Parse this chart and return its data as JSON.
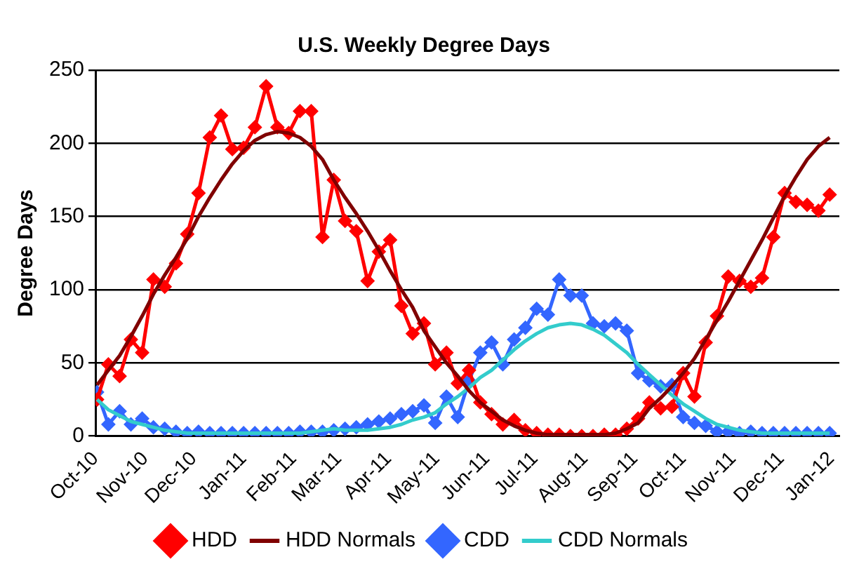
{
  "chart_data": {
    "type": "line",
    "title": "U.S. Weekly Degree Days",
    "ylabel": "Degree Days",
    "x": [
      "2010-10-02",
      "2010-10-09",
      "2010-10-16",
      "2010-10-23",
      "2010-10-30",
      "2010-11-06",
      "2010-11-13",
      "2010-11-20",
      "2010-11-27",
      "2010-12-04",
      "2010-12-11",
      "2010-12-18",
      "2010-12-25",
      "2011-01-01",
      "2011-01-08",
      "2011-01-15",
      "2011-01-22",
      "2011-01-29",
      "2011-02-05",
      "2011-02-12",
      "2011-02-19",
      "2011-02-26",
      "2011-03-05",
      "2011-03-12",
      "2011-03-19",
      "2011-03-26",
      "2011-04-02",
      "2011-04-09",
      "2011-04-16",
      "2011-04-23",
      "2011-04-30",
      "2011-05-07",
      "2011-05-14",
      "2011-05-21",
      "2011-05-28",
      "2011-06-04",
      "2011-06-11",
      "2011-06-18",
      "2011-06-25",
      "2011-07-02",
      "2011-07-09",
      "2011-07-16",
      "2011-07-23",
      "2011-07-30",
      "2011-08-06",
      "2011-08-13",
      "2011-08-20",
      "2011-08-27",
      "2011-09-03",
      "2011-09-10",
      "2011-09-17",
      "2011-09-24",
      "2011-10-01",
      "2011-10-08",
      "2011-10-15",
      "2011-10-22",
      "2011-10-29",
      "2011-11-05",
      "2011-11-12",
      "2011-11-19",
      "2011-11-26",
      "2011-12-03",
      "2011-12-10",
      "2011-12-17",
      "2011-12-24",
      "2011-12-31"
    ],
    "series": [
      {
        "name": "HDD",
        "color": "#ff0000",
        "marker": "diamond",
        "values": [
          25,
          49,
          41,
          66,
          57,
          107,
          102,
          118,
          138,
          166,
          204,
          219,
          196,
          197,
          211,
          239,
          211,
          207,
          222,
          222,
          136,
          175,
          147,
          140,
          106,
          126,
          134,
          89,
          70,
          77,
          49,
          57,
          36,
          45,
          23,
          15,
          8,
          11,
          4,
          2,
          1,
          1,
          0,
          0,
          0,
          1,
          1,
          5,
          12,
          23,
          19,
          20,
          43,
          27,
          64,
          82,
          109,
          106,
          102,
          108,
          136,
          166,
          160,
          158,
          154,
          165
        ]
      },
      {
        "name": "HDD Normals",
        "color": "#800000",
        "marker": "none",
        "values": [
          35,
          45,
          55,
          68,
          82,
          97,
          110,
          122,
          135,
          150,
          163,
          175,
          186,
          195,
          202,
          206,
          208,
          207,
          204,
          198,
          189,
          175,
          163,
          152,
          140,
          127,
          113,
          100,
          88,
          72,
          61,
          50,
          41,
          31,
          23,
          17,
          11,
          7,
          4,
          2,
          1,
          1,
          1,
          1,
          1,
          1,
          2,
          5,
          9,
          19,
          26,
          34,
          43,
          53,
          66,
          79,
          92,
          106,
          120,
          134,
          149,
          164,
          177,
          189,
          198,
          204
        ]
      },
      {
        "name": "CDD",
        "color": "#3366ff",
        "marker": "diamond",
        "values": [
          30,
          8,
          17,
          8,
          12,
          6,
          5,
          3,
          2,
          3,
          2,
          2,
          2,
          2,
          2,
          2,
          2,
          2,
          3,
          3,
          3,
          4,
          5,
          6,
          8,
          10,
          12,
          15,
          17,
          21,
          9,
          27,
          13,
          38,
          57,
          64,
          49,
          66,
          74,
          87,
          83,
          107,
          96,
          96,
          77,
          75,
          77,
          72,
          43,
          38,
          34,
          35,
          13,
          9,
          7,
          3,
          3,
          2,
          3,
          2,
          2,
          2,
          2,
          2,
          2,
          2
        ]
      },
      {
        "name": "CDD Normals",
        "color": "#33cccc",
        "marker": "none",
        "values": [
          25,
          18,
          14,
          10,
          8,
          6,
          4,
          3,
          2,
          2,
          2,
          2,
          2,
          2,
          2,
          2,
          2,
          2,
          2,
          3,
          4,
          5,
          4,
          4,
          4,
          5,
          6,
          8,
          11,
          13,
          16,
          22,
          27,
          33,
          40,
          45,
          52,
          59,
          65,
          70,
          74,
          76,
          77,
          76,
          73,
          69,
          63,
          57,
          49,
          42,
          35,
          28,
          22,
          17,
          12,
          8,
          6,
          4,
          3,
          2,
          2,
          2,
          2,
          2,
          2,
          2
        ]
      }
    ],
    "xlim": [
      "2010-10-01",
      "2012-01-06"
    ],
    "xticks": [
      {
        "value": "2010-10-01",
        "label": "Oct-10"
      },
      {
        "value": "2010-11-01",
        "label": "Nov-10"
      },
      {
        "value": "2010-12-01",
        "label": "Dec-10"
      },
      {
        "value": "2011-01-01",
        "label": "Jan-11"
      },
      {
        "value": "2011-02-01",
        "label": "Feb-11"
      },
      {
        "value": "2011-03-01",
        "label": "Mar-11"
      },
      {
        "value": "2011-04-01",
        "label": "Apr-11"
      },
      {
        "value": "2011-05-01",
        "label": "May-11"
      },
      {
        "value": "2011-06-01",
        "label": "Jun-11"
      },
      {
        "value": "2011-07-01",
        "label": "Jul-11"
      },
      {
        "value": "2011-08-01",
        "label": "Aug-11"
      },
      {
        "value": "2011-09-01",
        "label": "Sep-11"
      },
      {
        "value": "2011-10-01",
        "label": "Oct-11"
      },
      {
        "value": "2011-11-01",
        "label": "Nov-11"
      },
      {
        "value": "2011-12-01",
        "label": "Dec-11"
      },
      {
        "value": "2012-01-01",
        "label": "Jan-12"
      }
    ],
    "ylim": [
      0,
      250
    ],
    "yticks": [
      0,
      50,
      100,
      150,
      200,
      250
    ],
    "grid": "y",
    "legend": "bottom",
    "line_style": "solid"
  }
}
